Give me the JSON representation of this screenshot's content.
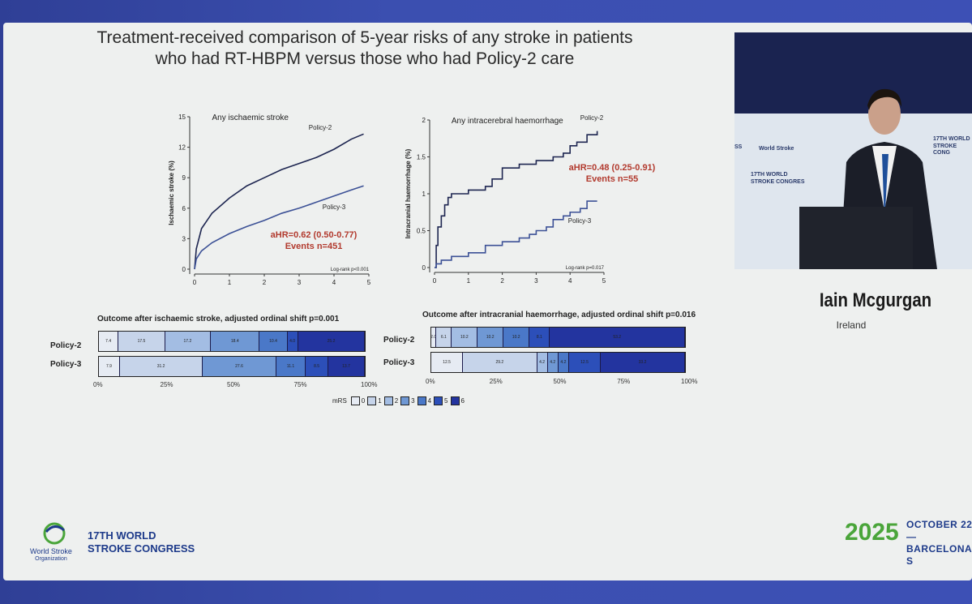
{
  "slide": {
    "title_line1": "Treatment-received comparison of 5-year risks of any stroke in patients",
    "title_line2": "who had RT-HBPM versus those who had Policy-2 care"
  },
  "speaker": {
    "name": "Iain Mcgurgan",
    "country": "Ireland"
  },
  "footer": {
    "org_line1": "World Stroke",
    "org_line2": "Organization",
    "congress_line1": "17TH WORLD",
    "congress_line2": "STROKE CONGRESS",
    "year": "2025",
    "date_line1": "OCTOBER 22—",
    "date_line2": "BARCELONA, S"
  },
  "video": {
    "wall_texts": [
      "SS",
      "World Stroke",
      "17TH WORLD",
      "STROKE CONGRES",
      "17TH WORLD",
      "STROKE CONG"
    ]
  },
  "colors": {
    "mrs": [
      "#e6ebf3",
      "#c6d4ea",
      "#a3bde3",
      "#6f98d4",
      "#4a78c8",
      "#2c4fb9",
      "#23349f"
    ],
    "annotation": "#b23a2e"
  },
  "chart_data": [
    {
      "type": "line",
      "title": "Any ischaemic stroke",
      "ylabel": "Ischaemic stroke (%)",
      "xlim": [
        0,
        5
      ],
      "ylim": [
        0,
        15
      ],
      "xticks": [
        "0",
        "1",
        "2",
        "3",
        "4",
        "5"
      ],
      "yticks": [
        "0",
        "3",
        "6",
        "9",
        "12",
        "15"
      ],
      "series": [
        {
          "name": "Policy-2",
          "x": [
            0,
            0.05,
            0.2,
            0.5,
            1,
            1.5,
            2,
            2.5,
            3,
            3.5,
            4,
            4.5,
            4.85
          ],
          "y": [
            0,
            2,
            4,
            5.5,
            7,
            8.2,
            9,
            9.8,
            10.4,
            11,
            11.8,
            12.8,
            13.3
          ]
        },
        {
          "name": "Policy-3",
          "x": [
            0,
            0.05,
            0.2,
            0.5,
            1,
            1.5,
            2,
            2.5,
            3,
            3.5,
            4,
            4.5,
            4.85
          ],
          "y": [
            0,
            1,
            1.8,
            2.6,
            3.5,
            4.2,
            4.8,
            5.5,
            6.0,
            6.6,
            7.2,
            7.8,
            8.2
          ]
        }
      ],
      "annotation": [
        "aHR=0.62 (0.50-0.77)",
        "Events n=451"
      ],
      "logrank": "Log-rank p<0.001"
    },
    {
      "type": "line",
      "title": "Any intracerebral haemorrhage",
      "ylabel": "Intracranial haemorrhage (%)",
      "xlim": [
        0,
        5
      ],
      "ylim": [
        0,
        2
      ],
      "xticks": [
        "0",
        "1",
        "2",
        "3",
        "4",
        "5"
      ],
      "yticks": [
        "0",
        "0.5",
        "1",
        "1.5",
        "2"
      ],
      "series": [
        {
          "name": "Policy-2",
          "x": [
            0,
            0.05,
            0.1,
            0.2,
            0.3,
            0.4,
            0.5,
            1,
            1.5,
            1.7,
            2,
            2.5,
            3,
            3.5,
            3.8,
            4,
            4.2,
            4.5,
            4.8
          ],
          "y": [
            0,
            0.3,
            0.55,
            0.7,
            0.85,
            0.95,
            1.0,
            1.05,
            1.1,
            1.2,
            1.35,
            1.4,
            1.45,
            1.5,
            1.55,
            1.65,
            1.7,
            1.8,
            1.85
          ]
        },
        {
          "name": "Policy-3",
          "x": [
            0,
            0.05,
            0.2,
            0.5,
            1,
            1.5,
            2,
            2.5,
            2.8,
            3,
            3.3,
            3.5,
            3.8,
            4,
            4.3,
            4.5,
            4.8
          ],
          "y": [
            0,
            0.05,
            0.1,
            0.15,
            0.2,
            0.3,
            0.35,
            0.4,
            0.45,
            0.5,
            0.55,
            0.65,
            0.7,
            0.75,
            0.8,
            0.9,
            0.9
          ]
        }
      ],
      "annotation": [
        "aHR=0.48 (0.25-0.91)",
        "Events n=55"
      ],
      "logrank": "Log-rank p=0.017"
    },
    {
      "type": "bar",
      "title": "Outcome after ischaemic stroke, adjusted ordinal shift p=0.001",
      "categories": [
        "Policy-2",
        "Policy-3"
      ],
      "stacked": true,
      "xticks": [
        "0%",
        "25%",
        "50%",
        "75%",
        "100%"
      ],
      "series": [
        {
          "name": "0",
          "values": [
            7.4,
            7.9
          ]
        },
        {
          "name": "1",
          "values": [
            17.5,
            31.2
          ]
        },
        {
          "name": "2",
          "values": [
            17.2,
            0
          ]
        },
        {
          "name": "3",
          "values": [
            18.4,
            27.6
          ]
        },
        {
          "name": "4",
          "values": [
            10.4,
            11.1
          ]
        },
        {
          "name": "5",
          "values": [
            4.0,
            8.5
          ]
        },
        {
          "name": "6",
          "values": [
            25.2,
            13.7
          ]
        }
      ]
    },
    {
      "type": "bar",
      "title": "Outcome after intracranial haemorrhage, adjusted ordinal shift p=0.016",
      "categories": [
        "Policy-2",
        "Policy-3"
      ],
      "stacked": true,
      "xticks": [
        "0%",
        "25%",
        "50%",
        "75%",
        "100%"
      ],
      "series": [
        {
          "name": "0",
          "values": [
            2.0,
            12.5
          ]
        },
        {
          "name": "1",
          "values": [
            6.1,
            29.2
          ]
        },
        {
          "name": "2",
          "values": [
            10.2,
            4.2
          ]
        },
        {
          "name": "3",
          "values": [
            10.2,
            4.2
          ]
        },
        {
          "name": "4",
          "values": [
            10.2,
            4.2
          ]
        },
        {
          "name": "5",
          "values": [
            8.1,
            12.5
          ]
        },
        {
          "name": "6",
          "values": [
            53.2,
            33.2
          ]
        }
      ]
    }
  ],
  "legend": {
    "label": "mRS",
    "items": [
      "0",
      "1",
      "2",
      "3",
      "4",
      "5",
      "6"
    ]
  }
}
